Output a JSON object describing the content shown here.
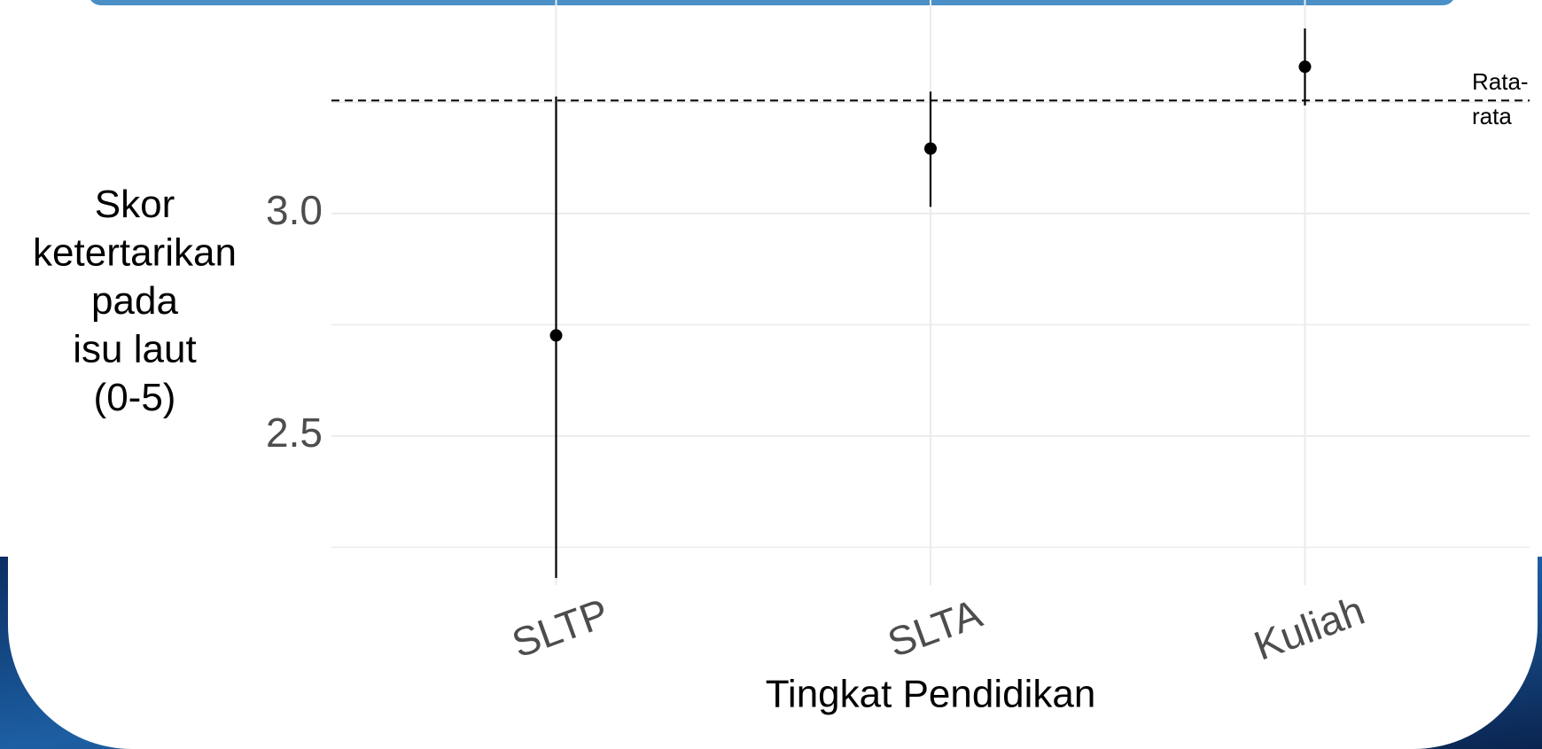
{
  "chart_data": {
    "type": "pointrange",
    "categories": [
      "SLTP",
      "SLTA",
      "Kuliah"
    ],
    "values": [
      2.726,
      3.146,
      3.33
    ],
    "lower": [
      2.181,
      3.015,
      3.243
    ],
    "upper": [
      3.263,
      3.274,
      3.416
    ],
    "color": "#000000",
    "ylim": [
      2.165,
      3.48
    ],
    "yticks": [
      {
        "value": 2.5,
        "label": "2.5"
      },
      {
        "value": 3,
        "label": "3.0"
      }
    ],
    "minor_yticks": [
      2.25,
      2.75,
      3.25
    ],
    "grid": true,
    "reference_line": {
      "value": 3.254,
      "label_lines": [
        "Rata-",
        "rata"
      ],
      "style": "dashed"
    },
    "x_label": "Tingkat Pendidikan",
    "y_label_lines": [
      "Skor",
      "ketertarikan",
      "pada",
      "isu laut",
      "(0-5)"
    ]
  }
}
